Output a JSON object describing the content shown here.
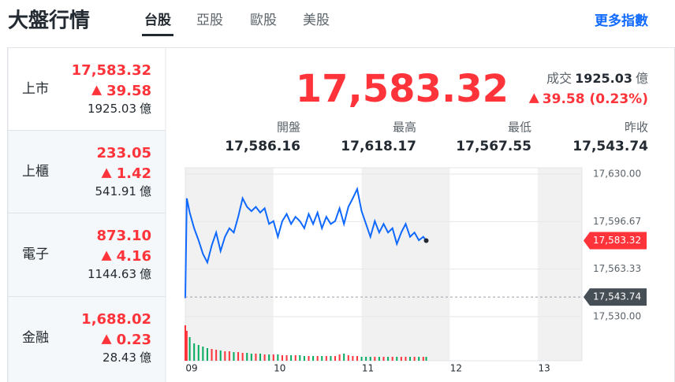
{
  "header": {
    "title": "大盤行情",
    "tabs": [
      "台股",
      "亞股",
      "歐股",
      "美股"
    ],
    "active_tab": 0,
    "more_link": "更多指數"
  },
  "sidebar": [
    {
      "name": "上市",
      "price": "17,583.32",
      "change": "39.58",
      "volume": "1925.03",
      "unit": "億"
    },
    {
      "name": "上櫃",
      "price": "233.05",
      "change": "1.42",
      "volume": "541.91",
      "unit": "億"
    },
    {
      "name": "電子",
      "price": "873.10",
      "change": "4.16",
      "volume": "1144.63",
      "unit": "億"
    },
    {
      "name": "金融",
      "price": "1,688.02",
      "change": "0.23",
      "volume": "28.43",
      "unit": "億"
    }
  ],
  "quote": {
    "price": "17,583.32",
    "volume_label": "成交",
    "volume": "1925.03",
    "unit": "億",
    "change": "39.58 (0.23%)",
    "stats": [
      {
        "label": "開盤",
        "value": "17,586.16"
      },
      {
        "label": "最高",
        "value": "17,618.17"
      },
      {
        "label": "最低",
        "value": "17,567.55"
      },
      {
        "label": "昨收",
        "value": "17,543.74"
      }
    ]
  },
  "chart_data": {
    "type": "line",
    "x": [
      9,
      9.0167,
      9.05,
      9.1,
      9.15,
      9.2,
      9.25,
      9.3,
      9.35,
      9.4,
      9.45,
      9.5,
      9.55,
      9.6,
      9.65,
      9.7,
      9.75,
      9.8,
      9.85,
      9.9,
      9.95,
      10,
      10.05,
      10.1,
      10.15,
      10.2,
      10.25,
      10.3,
      10.35,
      10.4,
      10.45,
      10.5,
      10.55,
      10.6,
      10.65,
      10.7,
      10.75,
      10.8,
      10.85,
      10.9,
      10.95,
      11,
      11.05,
      11.1,
      11.15,
      11.2,
      11.25,
      11.3,
      11.35,
      11.4,
      11.45,
      11.5,
      11.55,
      11.6,
      11.65,
      11.7,
      11.7333
    ],
    "series": [
      {
        "color": "#0f69ff",
        "values": [
          17543,
          17613,
          17603,
          17592,
          17583.6,
          17574,
          17568,
          17580,
          17589,
          17576,
          17586,
          17592,
          17589,
          17600,
          17613,
          17607,
          17604,
          17607,
          17603,
          17606,
          17595,
          17597,
          17586,
          17597,
          17602,
          17595,
          17600,
          17597,
          17592,
          17602,
          17595,
          17603,
          17592,
          17600,
          17595,
          17597,
          17606,
          17595,
          17607,
          17613,
          17619.5,
          17604,
          17595,
          17586,
          17597,
          17589,
          17595,
          17589,
          17592,
          17581,
          17589,
          17595,
          17586,
          17589,
          17583.6,
          17586,
          17583.32
        ]
      }
    ],
    "volume": [
      45,
      38,
      30,
      22,
      20,
      18,
      16,
      15,
      14,
      13,
      12,
      12,
      11,
      11,
      10,
      10,
      9,
      9,
      9,
      8,
      8,
      8,
      8,
      7,
      7,
      7,
      7,
      7,
      6,
      6,
      6,
      6,
      6,
      6,
      6,
      6,
      8,
      9,
      7,
      6,
      6,
      5,
      5,
      5,
      5,
      5,
      5,
      5,
      5,
      5,
      5,
      5,
      5,
      5,
      5,
      5,
      5
    ],
    "volume_colors": {
      "up": "#ff333a",
      "down": "#00ab5e"
    },
    "xlim": [
      9,
      13.5
    ],
    "xticks": [
      {
        "value": 9,
        "label": "09"
      },
      10,
      11,
      12,
      13
    ],
    "ylim": [
      17530,
      17630
    ],
    "yticks": [
      {
        "value": 17630,
        "label": "17,630.00"
      },
      {
        "value": 17596.67,
        "label": "17,596.67"
      },
      {
        "value": 17563.33,
        "label": "17,563.33"
      },
      {
        "value": 17530,
        "label": "17,530.00"
      }
    ],
    "markers": [
      {
        "value": 17583.32,
        "label": "17,583.32",
        "color": "#ff333a"
      },
      {
        "value": 17543.74,
        "label": "17,543.74",
        "color": "#464e56"
      }
    ],
    "grid": true
  }
}
